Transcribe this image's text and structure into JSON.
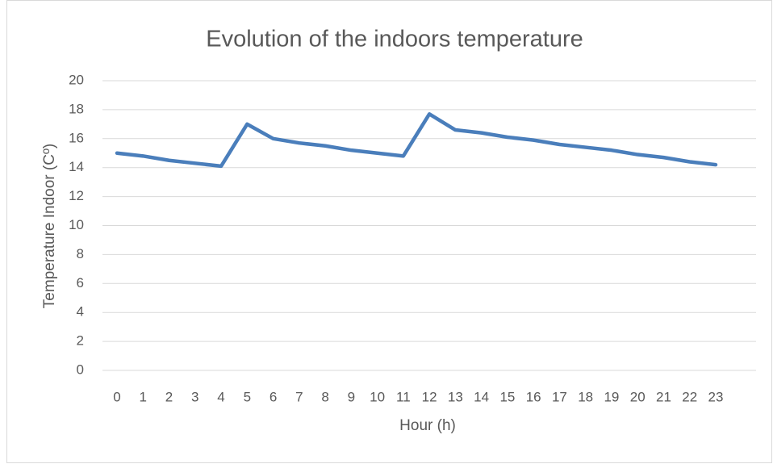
{
  "chart_data": {
    "type": "line",
    "title": "Evolution of the indoors temperature",
    "x_label": "Hour (h)",
    "y_label": "Temperature Indoor (Cº)",
    "categories": [
      0,
      1,
      2,
      3,
      4,
      5,
      6,
      7,
      8,
      9,
      10,
      11,
      12,
      13,
      14,
      15,
      16,
      17,
      18,
      19,
      20,
      21,
      22,
      23
    ],
    "series": [
      {
        "name": "Temperature Indoor",
        "color": "#4a7ebb",
        "values": [
          15.0,
          14.8,
          14.5,
          14.3,
          14.1,
          17.0,
          16.0,
          15.7,
          15.5,
          15.2,
          15.0,
          14.8,
          17.7,
          16.6,
          16.4,
          16.1,
          15.9,
          15.6,
          15.4,
          15.2,
          14.9,
          14.7,
          14.4,
          14.2
        ]
      }
    ],
    "ylim": [
      0,
      20
    ],
    "yticks": [
      0,
      2,
      4,
      6,
      8,
      10,
      12,
      14,
      16,
      18,
      20
    ],
    "grid": true
  }
}
